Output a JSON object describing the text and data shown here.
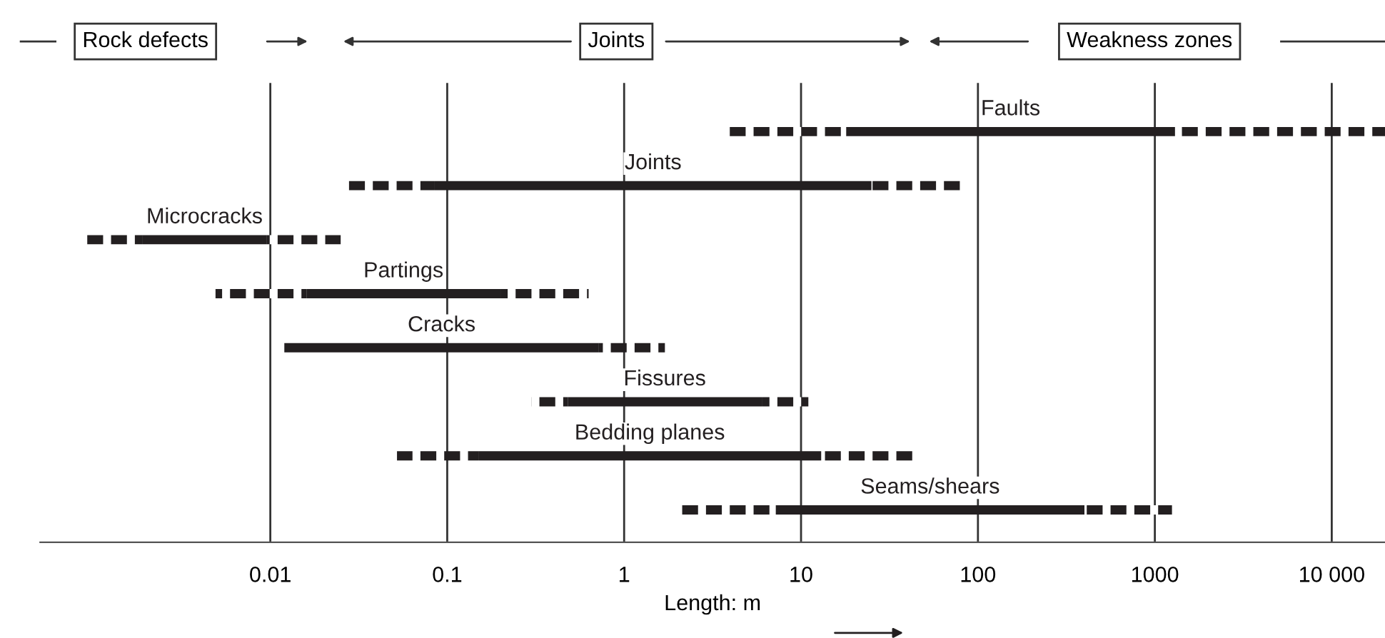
{
  "chart_data": {
    "type": "bar",
    "orientation": "horizontal",
    "xlabel": "Length: m",
    "annotations": [
      "Rock defects",
      "Joints",
      "Weakness zones"
    ],
    "categories": [
      "Faults",
      "Joints",
      "Microcracks",
      "Partings",
      "Cracks",
      "Fissures",
      "Bedding planes",
      "Seams/shears"
    ],
    "series": [
      {
        "line_style": "dashed",
        "color": "#231f20",
        "base": [
          3.8,
          0.026,
          0.0009,
          0.0049,
          null,
          0.3,
          0.052,
          2.1
        ],
        "values": [
          14.2,
          0.059,
          0.001,
          0.0111,
          null,
          0.18,
          0.098,
          5.1
        ]
      },
      {
        "line_style": "solid",
        "color": "#231f20",
        "base": [
          18,
          0.085,
          0.0019,
          0.016,
          0.012,
          0.48,
          0.15,
          7.2
        ],
        "values": [
          1282,
          24.915,
          0.0076,
          0.184,
          0.708,
          5.52,
          12.85,
          392.8
        ]
      },
      {
        "line_style": "dashed",
        "color": "#231f20",
        "base": [
          1300,
          25,
          0.0095,
          0.2,
          0.72,
          6,
          13,
          400
        ],
        "values": [
          18700,
          55,
          0.0155,
          0.43,
          0.98,
          5,
          32,
          850
        ]
      }
    ],
    "log": "x",
    "xlim": [
      0.0005,
      20000
    ],
    "xticks": [
      0.01,
      0.1,
      1,
      10,
      100,
      1000,
      {
        "value": 10000,
        "label": "10 000"
      }
    ],
    "grid": "x"
  }
}
